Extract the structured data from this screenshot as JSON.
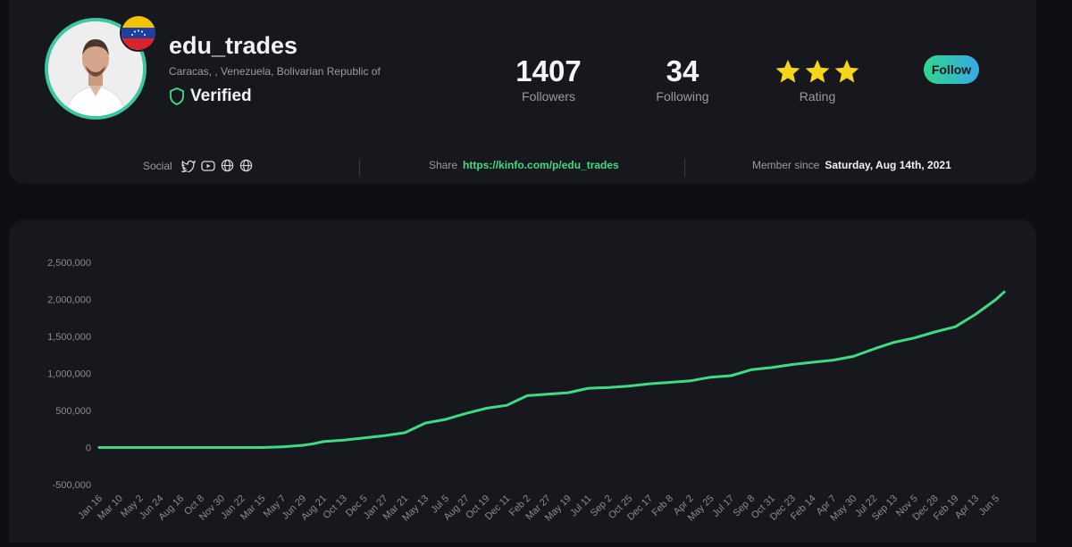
{
  "profile": {
    "username": "edu_trades",
    "location": "Caracas, , Venezuela, Bolivarian Republic of",
    "verified_label": "Verified",
    "flag": "venezuela-flag"
  },
  "stats": {
    "followers_value": "1407",
    "followers_label": "Followers",
    "following_value": "34",
    "following_label": "Following",
    "rating_label": "Rating",
    "rating_stars": 3
  },
  "follow_button": "Follow",
  "meta": {
    "social_label": "Social",
    "social_icons": [
      "twitter-icon",
      "youtube-icon",
      "globe-icon",
      "globe-icon"
    ],
    "share_label": "Share",
    "share_url": "https://kinfo.com/p/edu_trades",
    "member_label": "Member since",
    "member_date": "Saturday, Aug 14th, 2021"
  },
  "colors": {
    "background": "#0e0f12",
    "card": "#17181d",
    "accent_green": "#3ddc84",
    "star": "#f7d51d",
    "follow_gradient_start": "#2fd68b",
    "follow_gradient_end": "#38a9e8"
  },
  "chart_data": {
    "type": "line",
    "title": "",
    "xlabel": "",
    "ylabel": "",
    "ylim": [
      -500000,
      2500000
    ],
    "y_ticks": [
      2500000,
      2000000,
      1500000,
      1000000,
      500000,
      0,
      -500000
    ],
    "y_tick_labels": [
      "2,500,000",
      "2,000,000",
      "1,500,000",
      "1,000,000",
      "500,000",
      "0",
      "-500,000"
    ],
    "x_tick_labels": [
      "Jan 16",
      "Mar 10",
      "May 2",
      "Jun 24",
      "Aug 16",
      "Oct 8",
      "Nov 30",
      "Jan 22",
      "Mar 15",
      "May 7",
      "Jun 29",
      "Aug 21",
      "Oct 13",
      "Dec 5",
      "Jan 27",
      "Mar 21",
      "May 13",
      "Jul 5",
      "Aug 27",
      "Oct 19",
      "Dec 11",
      "Feb 2",
      "Mar 27",
      "May 19",
      "Jul 11",
      "Sep 2",
      "Oct 25",
      "Dec 17",
      "Feb 8",
      "Apr 2",
      "May 25",
      "Jul 17",
      "Sep 8",
      "Oct 31",
      "Dec 23",
      "Feb 14",
      "Apr 7",
      "May 30",
      "Jul 22",
      "Sep 13",
      "Nov 5",
      "Dec 28",
      "Feb 19",
      "Apr 13",
      "Jun 5"
    ],
    "line_color": "#3ddc84",
    "grid": false,
    "series": [
      {
        "x": [
          0,
          4,
          8,
          9,
          10,
          10.5,
          11,
          12,
          13,
          14,
          15,
          16,
          17,
          17.5,
          18,
          19,
          20,
          21,
          22,
          23,
          24,
          25,
          26,
          27,
          28,
          29,
          30,
          31,
          32,
          33,
          34,
          35,
          36,
          37,
          38,
          39,
          40,
          41,
          42,
          43,
          44,
          44.4
        ],
        "values": [
          0,
          0,
          0,
          10000,
          30000,
          50000,
          80000,
          100000,
          130000,
          160000,
          200000,
          330000,
          380000,
          420000,
          460000,
          530000,
          570000,
          700000,
          720000,
          740000,
          800000,
          810000,
          830000,
          860000,
          880000,
          900000,
          950000,
          970000,
          1050000,
          1080000,
          1120000,
          1150000,
          1180000,
          1230000,
          1330000,
          1420000,
          1480000,
          1560000,
          1630000,
          1800000,
          2000000,
          2100000
        ]
      }
    ]
  }
}
